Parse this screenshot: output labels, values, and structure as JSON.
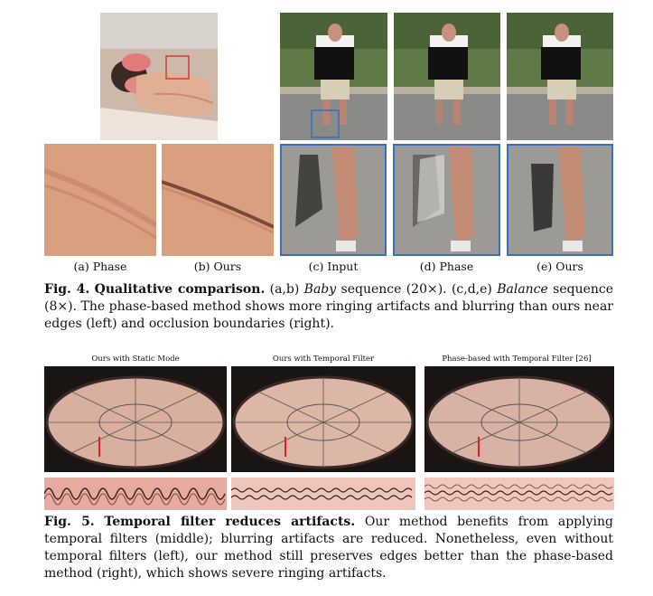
{
  "fig4": {
    "labels": {
      "a": "(a) Phase",
      "b": "(b) Ours",
      "c": "(c) Input",
      "d": "(d) Phase",
      "e": "(e) Ours"
    },
    "caption": {
      "number": "Fig. 4.",
      "title": "Qualitative comparison.",
      "part1": "(a,b)",
      "baby": "Baby",
      "part2": "sequence (20×). (c,d,e)",
      "balance": "Balance",
      "part3": "sequence (8×). The phase-based method shows more ringing artifacts and blurring than ours near edges (left) and occlusion boundaries (right)."
    }
  },
  "fig5": {
    "titles": {
      "static": "Ours with Static Mode",
      "temporal": "Ours with Temporal Filter",
      "phase": "Phase-based with Temporal Filter [26]"
    },
    "caption": {
      "number": "Fig. 5.",
      "title": "Temporal filter reduces artifacts.",
      "body": "Our method benefits from applying temporal filters (middle); blurring artifacts are reduced. Nonetheless, even without temporal filters (left), our method still preserves edges better than the phase-based method (right), which shows severe ringing artifacts."
    }
  },
  "colors": {
    "highlight_box": "#3a6fc4",
    "red_marker": "#e0202a",
    "skin": "#d9a07f"
  }
}
